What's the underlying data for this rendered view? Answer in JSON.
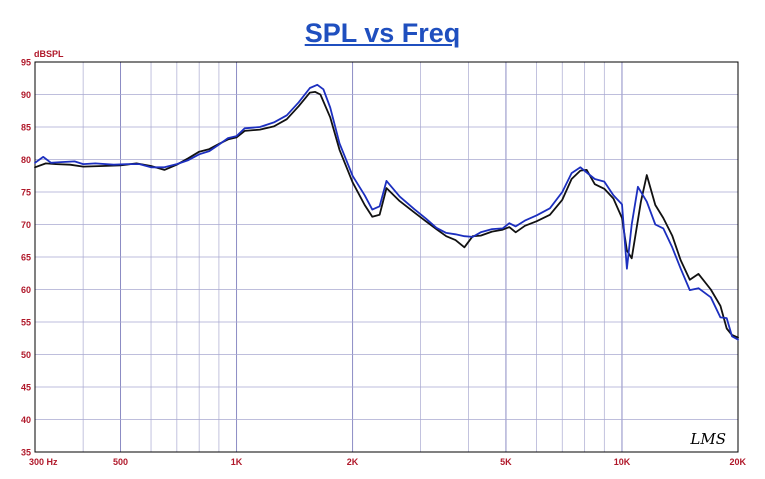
{
  "chart_data": {
    "type": "line",
    "title": "SPL vs Freq",
    "ylabel": "dBSPL",
    "xlabel": "",
    "x_scale": "log",
    "xlim": [
      300,
      20000
    ],
    "ylim": [
      35,
      95
    ],
    "grid": true,
    "y_ticks": [
      95,
      90,
      85,
      80,
      75,
      70,
      65,
      60,
      55,
      50,
      45,
      40,
      35
    ],
    "x_tick_labels": [
      {
        "value": 300,
        "label": "300  Hz"
      },
      {
        "value": 500,
        "label": "500"
      },
      {
        "value": 1000,
        "label": "1K"
      },
      {
        "value": 2000,
        "label": "2K"
      },
      {
        "value": 5000,
        "label": "5K"
      },
      {
        "value": 10000,
        "label": "10K"
      },
      {
        "value": 20000,
        "label": "20K"
      }
    ],
    "watermark": "LMS",
    "series": [
      {
        "color": "#111111",
        "points": [
          [
            300,
            78.8
          ],
          [
            320,
            79.4
          ],
          [
            340,
            79.3
          ],
          [
            370,
            79.2
          ],
          [
            400,
            78.9
          ],
          [
            450,
            79.0
          ],
          [
            500,
            79.1
          ],
          [
            550,
            79.4
          ],
          [
            600,
            79.0
          ],
          [
            650,
            78.4
          ],
          [
            700,
            79.2
          ],
          [
            750,
            80.2
          ],
          [
            800,
            81.2
          ],
          [
            850,
            81.6
          ],
          [
            900,
            82.4
          ],
          [
            950,
            83.1
          ],
          [
            1000,
            83.4
          ],
          [
            1050,
            84.4
          ],
          [
            1150,
            84.6
          ],
          [
            1250,
            85.1
          ],
          [
            1350,
            86.2
          ],
          [
            1450,
            88.2
          ],
          [
            1550,
            90.3
          ],
          [
            1600,
            90.4
          ],
          [
            1650,
            90.0
          ],
          [
            1750,
            86.5
          ],
          [
            1850,
            81.5
          ],
          [
            2000,
            76.5
          ],
          [
            2150,
            73.0
          ],
          [
            2250,
            71.2
          ],
          [
            2350,
            71.5
          ],
          [
            2450,
            75.6
          ],
          [
            2650,
            73.6
          ],
          [
            2900,
            71.8
          ],
          [
            3100,
            70.5
          ],
          [
            3300,
            69.3
          ],
          [
            3500,
            68.2
          ],
          [
            3700,
            67.6
          ],
          [
            3900,
            66.5
          ],
          [
            4100,
            68.2
          ],
          [
            4300,
            68.3
          ],
          [
            4600,
            68.9
          ],
          [
            4900,
            69.2
          ],
          [
            5100,
            69.6
          ],
          [
            5300,
            68.8
          ],
          [
            5600,
            69.8
          ],
          [
            6000,
            70.5
          ],
          [
            6500,
            71.5
          ],
          [
            7000,
            73.8
          ],
          [
            7400,
            77.0
          ],
          [
            7800,
            78.3
          ],
          [
            8100,
            78.4
          ],
          [
            8500,
            76.2
          ],
          [
            9000,
            75.5
          ],
          [
            9500,
            74.0
          ],
          [
            10000,
            71.0
          ],
          [
            10300,
            66.0
          ],
          [
            10600,
            64.8
          ],
          [
            11200,
            73.5
          ],
          [
            11600,
            77.6
          ],
          [
            12200,
            73.0
          ],
          [
            12800,
            71.0
          ],
          [
            13500,
            68.3
          ],
          [
            14200,
            64.5
          ],
          [
            15000,
            61.5
          ],
          [
            15800,
            62.4
          ],
          [
            17000,
            60.0
          ],
          [
            18000,
            57.5
          ],
          [
            18700,
            54.0
          ],
          [
            19300,
            53.0
          ],
          [
            20000,
            52.6
          ]
        ]
      },
      {
        "color": "#1c2fbf",
        "points": [
          [
            300,
            79.5
          ],
          [
            315,
            80.4
          ],
          [
            330,
            79.5
          ],
          [
            350,
            79.6
          ],
          [
            380,
            79.7
          ],
          [
            400,
            79.3
          ],
          [
            430,
            79.4
          ],
          [
            480,
            79.2
          ],
          [
            520,
            79.3
          ],
          [
            560,
            79.3
          ],
          [
            600,
            78.8
          ],
          [
            650,
            78.8
          ],
          [
            700,
            79.3
          ],
          [
            750,
            79.9
          ],
          [
            800,
            80.8
          ],
          [
            850,
            81.3
          ],
          [
            900,
            82.3
          ],
          [
            950,
            83.3
          ],
          [
            1000,
            83.6
          ],
          [
            1050,
            84.8
          ],
          [
            1150,
            85.0
          ],
          [
            1250,
            85.7
          ],
          [
            1350,
            86.8
          ],
          [
            1450,
            88.8
          ],
          [
            1550,
            91.0
          ],
          [
            1620,
            91.5
          ],
          [
            1680,
            90.8
          ],
          [
            1750,
            88.0
          ],
          [
            1850,
            82.5
          ],
          [
            2000,
            77.5
          ],
          [
            2150,
            74.5
          ],
          [
            2250,
            72.3
          ],
          [
            2350,
            72.8
          ],
          [
            2450,
            76.7
          ],
          [
            2650,
            74.3
          ],
          [
            2900,
            72.3
          ],
          [
            3100,
            70.9
          ],
          [
            3300,
            69.5
          ],
          [
            3500,
            68.7
          ],
          [
            3700,
            68.5
          ],
          [
            3900,
            68.2
          ],
          [
            4100,
            68.1
          ],
          [
            4300,
            68.8
          ],
          [
            4600,
            69.3
          ],
          [
            4900,
            69.4
          ],
          [
            5100,
            70.2
          ],
          [
            5300,
            69.7
          ],
          [
            5600,
            70.6
          ],
          [
            6000,
            71.4
          ],
          [
            6500,
            72.5
          ],
          [
            7000,
            75.0
          ],
          [
            7400,
            77.9
          ],
          [
            7800,
            78.8
          ],
          [
            8100,
            78.0
          ],
          [
            8500,
            77.0
          ],
          [
            9000,
            76.6
          ],
          [
            9500,
            74.5
          ],
          [
            10000,
            73.1
          ],
          [
            10300,
            63.2
          ],
          [
            10600,
            70.0
          ],
          [
            11000,
            75.8
          ],
          [
            11600,
            73.5
          ],
          [
            12200,
            70.0
          ],
          [
            12800,
            69.4
          ],
          [
            13500,
            66.5
          ],
          [
            14200,
            63.2
          ],
          [
            15000,
            59.9
          ],
          [
            15800,
            60.2
          ],
          [
            17000,
            58.8
          ],
          [
            18000,
            55.7
          ],
          [
            18700,
            55.6
          ],
          [
            19300,
            52.8
          ],
          [
            20000,
            52.3
          ]
        ]
      }
    ]
  }
}
